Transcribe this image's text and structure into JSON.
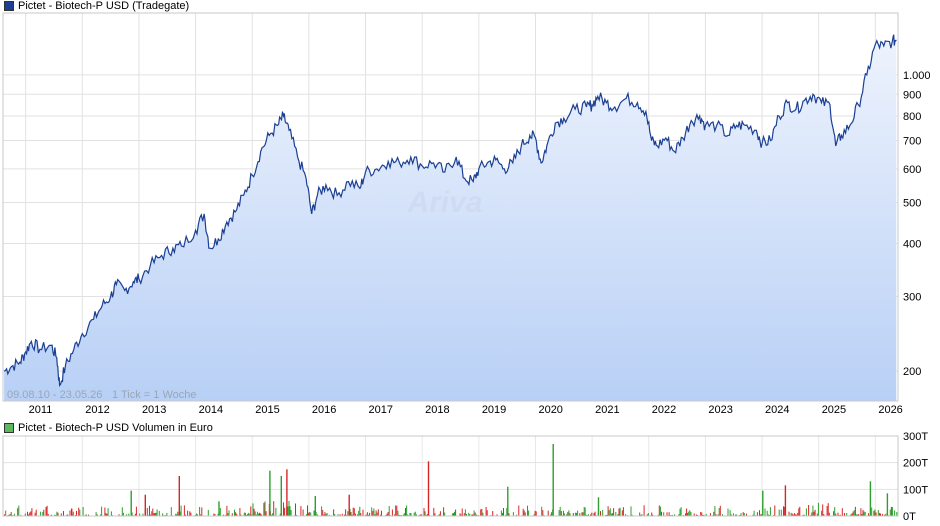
{
  "price_chart": {
    "legend_label": "Pictet - Biotech-P USD (Tradegate)",
    "series_color": "#1a3f94",
    "range_label": "09.08.10 - 23.05.26",
    "tick_label": "1 Tick = 1 Woche",
    "watermark": "Ariva"
  },
  "volume_chart": {
    "legend_label": "Pictet - Biotech-P USD Volumen in Euro",
    "up_color": "#2ca02c",
    "down_color": "#d62728"
  },
  "chart_data": [
    {
      "type": "area",
      "scale": "log",
      "ylim": [
        170,
        1400
      ],
      "xlim": [
        2010.6,
        2026.4
      ],
      "y_ticks": [
        {
          "value": 1000,
          "label": "1.000"
        },
        {
          "value": 900,
          "label": "900"
        },
        {
          "value": 800,
          "label": "800"
        },
        {
          "value": 700,
          "label": "700"
        },
        {
          "value": 600,
          "label": "600"
        },
        {
          "value": 500,
          "label": "500"
        },
        {
          "value": 400,
          "label": "400"
        },
        {
          "value": 300,
          "label": "300"
        },
        {
          "value": 200,
          "label": "200"
        }
      ],
      "x_ticks": [
        {
          "value": 2011,
          "label": "2011"
        },
        {
          "value": 2012,
          "label": "2012"
        },
        {
          "value": 2013,
          "label": "2013"
        },
        {
          "value": 2014,
          "label": "2014"
        },
        {
          "value": 2015,
          "label": "2015"
        },
        {
          "value": 2016,
          "label": "2016"
        },
        {
          "value": 2017,
          "label": "2017"
        },
        {
          "value": 2018,
          "label": "2018"
        },
        {
          "value": 2019,
          "label": "2019"
        },
        {
          "value": 2020,
          "label": "2020"
        },
        {
          "value": 2021,
          "label": "2021"
        },
        {
          "value": 2022,
          "label": "2022"
        },
        {
          "value": 2023,
          "label": "2023"
        },
        {
          "value": 2024,
          "label": "2024"
        },
        {
          "value": 2025,
          "label": "2025"
        },
        {
          "value": 2026,
          "label": "2026"
        }
      ],
      "points": [
        [
          2010.62,
          200
        ],
        [
          2010.75,
          205
        ],
        [
          2010.9,
          210
        ],
        [
          2011.0,
          222
        ],
        [
          2011.1,
          235
        ],
        [
          2011.25,
          225
        ],
        [
          2011.45,
          230
        ],
        [
          2011.55,
          215
        ],
        [
          2011.6,
          185
        ],
        [
          2011.7,
          205
        ],
        [
          2011.85,
          225
        ],
        [
          2012.0,
          245
        ],
        [
          2012.2,
          265
        ],
        [
          2012.35,
          285
        ],
        [
          2012.5,
          300
        ],
        [
          2012.6,
          320
        ],
        [
          2012.75,
          310
        ],
        [
          2012.9,
          325
        ],
        [
          2013.0,
          330
        ],
        [
          2013.2,
          355
        ],
        [
          2013.4,
          375
        ],
        [
          2013.6,
          390
        ],
        [
          2013.75,
          395
        ],
        [
          2014.0,
          430
        ],
        [
          2014.15,
          470
        ],
        [
          2014.25,
          390
        ],
        [
          2014.4,
          410
        ],
        [
          2014.55,
          450
        ],
        [
          2014.7,
          475
        ],
        [
          2014.85,
          520
        ],
        [
          2015.0,
          580
        ],
        [
          2015.15,
          660
        ],
        [
          2015.3,
          720
        ],
        [
          2015.45,
          760
        ],
        [
          2015.55,
          800
        ],
        [
          2015.65,
          740
        ],
        [
          2015.8,
          640
        ],
        [
          2015.95,
          570
        ],
        [
          2016.05,
          470
        ],
        [
          2016.15,
          520
        ],
        [
          2016.3,
          550
        ],
        [
          2016.5,
          520
        ],
        [
          2016.7,
          560
        ],
        [
          2016.9,
          540
        ],
        [
          2017.0,
          590
        ],
        [
          2017.2,
          600
        ],
        [
          2017.4,
          625
        ],
        [
          2017.6,
          620
        ],
        [
          2017.8,
          640
        ],
        [
          2018.0,
          610
        ],
        [
          2018.2,
          620
        ],
        [
          2018.4,
          590
        ],
        [
          2018.6,
          640
        ],
        [
          2018.75,
          570
        ],
        [
          2018.9,
          560
        ],
        [
          2019.0,
          600
        ],
        [
          2019.15,
          620
        ],
        [
          2019.3,
          630
        ],
        [
          2019.45,
          600
        ],
        [
          2019.6,
          620
        ],
        [
          2019.75,
          680
        ],
        [
          2019.9,
          720
        ],
        [
          2020.0,
          710
        ],
        [
          2020.1,
          620
        ],
        [
          2020.2,
          680
        ],
        [
          2020.35,
          770
        ],
        [
          2020.5,
          790
        ],
        [
          2020.7,
          830
        ],
        [
          2020.9,
          840
        ],
        [
          2021.0,
          850
        ],
        [
          2021.1,
          890
        ],
        [
          2021.25,
          860
        ],
        [
          2021.4,
          840
        ],
        [
          2021.6,
          880
        ],
        [
          2021.8,
          860
        ],
        [
          2021.95,
          820
        ],
        [
          2022.05,
          700
        ],
        [
          2022.15,
          680
        ],
        [
          2022.3,
          710
        ],
        [
          2022.45,
          660
        ],
        [
          2022.6,
          710
        ],
        [
          2022.75,
          780
        ],
        [
          2022.9,
          800
        ],
        [
          2023.0,
          760
        ],
        [
          2023.2,
          760
        ],
        [
          2023.4,
          720
        ],
        [
          2023.55,
          760
        ],
        [
          2023.7,
          760
        ],
        [
          2023.9,
          740
        ],
        [
          2024.0,
          690
        ],
        [
          2024.15,
          700
        ],
        [
          2024.3,
          800
        ],
        [
          2024.45,
          860
        ],
        [
          2024.6,
          830
        ],
        [
          2024.75,
          870
        ],
        [
          2024.9,
          900
        ],
        [
          2025.05,
          860
        ],
        [
          2025.2,
          850
        ],
        [
          2025.3,
          680
        ],
        [
          2025.4,
          720
        ],
        [
          2025.55,
          760
        ],
        [
          2025.7,
          850
        ],
        [
          2025.85,
          1000
        ],
        [
          2026.0,
          1180
        ],
        [
          2026.15,
          1170
        ],
        [
          2026.3,
          1200
        ],
        [
          2026.37,
          1210
        ]
      ]
    },
    {
      "type": "bar",
      "ylim": [
        0,
        300
      ],
      "y_ticks": [
        {
          "value": 300,
          "label": "300T"
        },
        {
          "value": 200,
          "label": "200T"
        },
        {
          "value": 100,
          "label": "100T"
        },
        {
          "value": 0,
          "label": "0T"
        }
      ],
      "highlight_bars": [
        {
          "x": 2011.8,
          "value": 28,
          "dir": "down"
        },
        {
          "x": 2012.85,
          "value": 95,
          "dir": "up"
        },
        {
          "x": 2013.1,
          "value": 80,
          "dir": "down"
        },
        {
          "x": 2013.7,
          "value": 150,
          "dir": "down"
        },
        {
          "x": 2014.4,
          "value": 55,
          "dir": "up"
        },
        {
          "x": 2015.3,
          "value": 170,
          "dir": "up"
        },
        {
          "x": 2015.5,
          "value": 150,
          "dir": "up"
        },
        {
          "x": 2015.6,
          "value": 175,
          "dir": "down"
        },
        {
          "x": 2016.1,
          "value": 75,
          "dir": "up"
        },
        {
          "x": 2016.7,
          "value": 80,
          "dir": "down"
        },
        {
          "x": 2018.1,
          "value": 205,
          "dir": "down"
        },
        {
          "x": 2019.5,
          "value": 110,
          "dir": "up"
        },
        {
          "x": 2020.3,
          "value": 270,
          "dir": "up"
        },
        {
          "x": 2021.1,
          "value": 70,
          "dir": "up"
        },
        {
          "x": 2024.0,
          "value": 95,
          "dir": "up"
        },
        {
          "x": 2024.4,
          "value": 115,
          "dir": "down"
        },
        {
          "x": 2025.9,
          "value": 130,
          "dir": "up"
        },
        {
          "x": 2026.2,
          "value": 85,
          "dir": "up"
        }
      ]
    }
  ]
}
